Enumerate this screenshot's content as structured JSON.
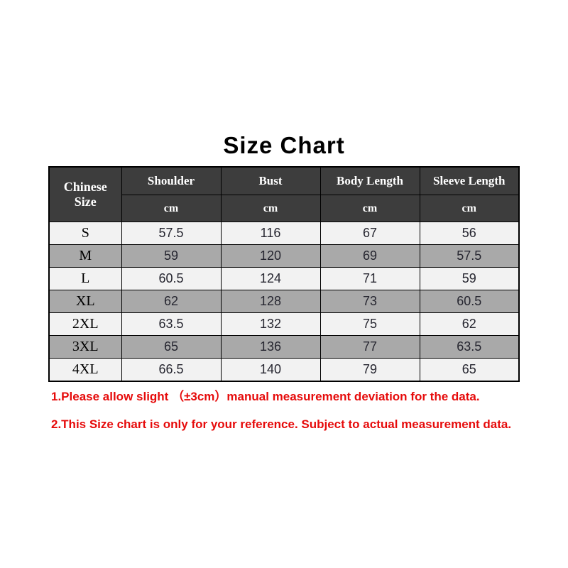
{
  "page_title": "Size Chart",
  "chart_data": {
    "type": "table",
    "title": "Size Chart",
    "size_column_header": "Chinese  Size",
    "measure_columns": [
      "Shoulder",
      "Bust",
      "Body Length",
      "Sleeve Length"
    ],
    "unit": "cm",
    "rows": [
      {
        "size": "S",
        "shoulder": 57.5,
        "bust": 116,
        "body_length": 67,
        "sleeve_length": 56
      },
      {
        "size": "M",
        "shoulder": 59,
        "bust": 120,
        "body_length": 69,
        "sleeve_length": 57.5
      },
      {
        "size": "L",
        "shoulder": 60.5,
        "bust": 124,
        "body_length": 71,
        "sleeve_length": 59
      },
      {
        "size": "XL",
        "shoulder": 62,
        "bust": 128,
        "body_length": 73,
        "sleeve_length": 60.5
      },
      {
        "size": "2XL",
        "shoulder": 63.5,
        "bust": 132,
        "body_length": 75,
        "sleeve_length": 62
      },
      {
        "size": "3XL",
        "shoulder": 65,
        "bust": 136,
        "body_length": 77,
        "sleeve_length": 63.5
      },
      {
        "size": "4XL",
        "shoulder": 66.5,
        "bust": 140,
        "body_length": 79,
        "sleeve_length": 65
      }
    ]
  },
  "notes": [
    "1.Please allow slight （±3cm）manual measurement deviation for the data.",
    "2.This Size chart is only for your reference. Subject to actual measurement data."
  ],
  "colors": {
    "header_bg": "#3d3d3d",
    "header_text": "#ffffff",
    "row_light": "#f2f2f2",
    "row_dark": "#a9a9a9",
    "note_red": "#e60b0b",
    "border": "#000000"
  }
}
